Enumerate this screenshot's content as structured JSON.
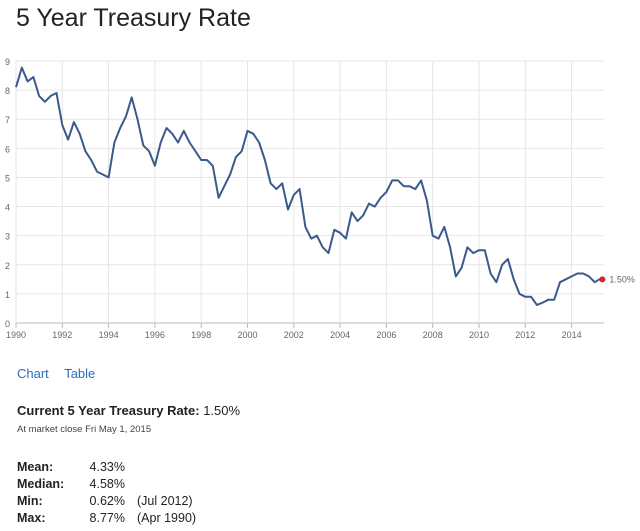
{
  "title": "5 Year Treasury Rate",
  "tabs": {
    "chart": "Chart",
    "table": "Table"
  },
  "current": {
    "label": "Current 5 Year Treasury Rate:",
    "value": "1.50%",
    "note": "At market close Fri May 1, 2015"
  },
  "stats": {
    "mean": {
      "label": "Mean:",
      "value": "4.33%"
    },
    "median": {
      "label": "Median:",
      "value": "4.58%"
    },
    "min": {
      "label": "Min:",
      "value": "0.62%",
      "date": "(Jul 2012)"
    },
    "max": {
      "label": "Max:",
      "value": "8.77%",
      "date": "(Apr 1990)"
    }
  },
  "chart_data": {
    "type": "line",
    "title": "",
    "xlabel": "",
    "ylabel": "",
    "xlim": [
      1990,
      2015.4
    ],
    "ylim": [
      0,
      9
    ],
    "x_ticks": [
      1990,
      1992,
      1994,
      1996,
      1998,
      2000,
      2002,
      2004,
      2006,
      2008,
      2010,
      2012,
      2014
    ],
    "y_ticks": [
      0,
      1,
      2,
      3,
      4,
      5,
      6,
      7,
      8,
      9
    ],
    "grid": true,
    "line_color": "#3a5a8c",
    "marker_color": "#d9232e",
    "end_label": "1.50%",
    "series": [
      {
        "points": [
          [
            1990.0,
            8.1
          ],
          [
            1990.25,
            8.77
          ],
          [
            1990.5,
            8.3
          ],
          [
            1990.75,
            8.45
          ],
          [
            1991.0,
            7.8
          ],
          [
            1991.25,
            7.6
          ],
          [
            1991.5,
            7.8
          ],
          [
            1991.75,
            7.9
          ],
          [
            1992.0,
            6.8
          ],
          [
            1992.25,
            6.3
          ],
          [
            1992.5,
            6.9
          ],
          [
            1992.75,
            6.5
          ],
          [
            1993.0,
            5.9
          ],
          [
            1993.25,
            5.6
          ],
          [
            1993.5,
            5.2
          ],
          [
            1993.75,
            5.1
          ],
          [
            1994.0,
            5.0
          ],
          [
            1994.25,
            6.2
          ],
          [
            1994.5,
            6.7
          ],
          [
            1994.75,
            7.1
          ],
          [
            1995.0,
            7.75
          ],
          [
            1995.25,
            7.0
          ],
          [
            1995.5,
            6.1
          ],
          [
            1995.75,
            5.9
          ],
          [
            1996.0,
            5.4
          ],
          [
            1996.25,
            6.2
          ],
          [
            1996.5,
            6.7
          ],
          [
            1996.75,
            6.5
          ],
          [
            1997.0,
            6.2
          ],
          [
            1997.25,
            6.6
          ],
          [
            1997.5,
            6.2
          ],
          [
            1997.75,
            5.9
          ],
          [
            1998.0,
            5.6
          ],
          [
            1998.25,
            5.6
          ],
          [
            1998.5,
            5.4
          ],
          [
            1998.75,
            4.3
          ],
          [
            1999.0,
            4.7
          ],
          [
            1999.25,
            5.1
          ],
          [
            1999.5,
            5.7
          ],
          [
            1999.75,
            5.9
          ],
          [
            2000.0,
            6.6
          ],
          [
            2000.25,
            6.5
          ],
          [
            2000.5,
            6.2
          ],
          [
            2000.75,
            5.6
          ],
          [
            2001.0,
            4.8
          ],
          [
            2001.25,
            4.6
          ],
          [
            2001.5,
            4.8
          ],
          [
            2001.75,
            3.9
          ],
          [
            2002.0,
            4.4
          ],
          [
            2002.25,
            4.6
          ],
          [
            2002.5,
            3.3
          ],
          [
            2002.75,
            2.9
          ],
          [
            2003.0,
            3.0
          ],
          [
            2003.25,
            2.6
          ],
          [
            2003.5,
            2.4
          ],
          [
            2003.75,
            3.2
          ],
          [
            2004.0,
            3.1
          ],
          [
            2004.25,
            2.9
          ],
          [
            2004.5,
            3.8
          ],
          [
            2004.75,
            3.5
          ],
          [
            2005.0,
            3.7
          ],
          [
            2005.25,
            4.1
          ],
          [
            2005.5,
            4.0
          ],
          [
            2005.75,
            4.3
          ],
          [
            2006.0,
            4.5
          ],
          [
            2006.25,
            4.9
          ],
          [
            2006.5,
            4.9
          ],
          [
            2006.75,
            4.7
          ],
          [
            2007.0,
            4.7
          ],
          [
            2007.25,
            4.6
          ],
          [
            2007.5,
            4.9
          ],
          [
            2007.75,
            4.2
          ],
          [
            2008.0,
            3.0
          ],
          [
            2008.25,
            2.9
          ],
          [
            2008.5,
            3.3
          ],
          [
            2008.75,
            2.6
          ],
          [
            2009.0,
            1.6
          ],
          [
            2009.25,
            1.9
          ],
          [
            2009.5,
            2.6
          ],
          [
            2009.75,
            2.4
          ],
          [
            2010.0,
            2.5
          ],
          [
            2010.25,
            2.5
          ],
          [
            2010.5,
            1.7
          ],
          [
            2010.75,
            1.4
          ],
          [
            2011.0,
            2.0
          ],
          [
            2011.25,
            2.2
          ],
          [
            2011.5,
            1.5
          ],
          [
            2011.75,
            1.0
          ],
          [
            2012.0,
            0.9
          ],
          [
            2012.25,
            0.9
          ],
          [
            2012.5,
            0.62
          ],
          [
            2012.75,
            0.7
          ],
          [
            2013.0,
            0.8
          ],
          [
            2013.25,
            0.8
          ],
          [
            2013.5,
            1.4
          ],
          [
            2013.75,
            1.5
          ],
          [
            2014.0,
            1.6
          ],
          [
            2014.25,
            1.7
          ],
          [
            2014.5,
            1.7
          ],
          [
            2014.75,
            1.6
          ],
          [
            2015.0,
            1.4
          ],
          [
            2015.2,
            1.5
          ],
          [
            2015.33,
            1.5
          ]
        ]
      }
    ]
  }
}
